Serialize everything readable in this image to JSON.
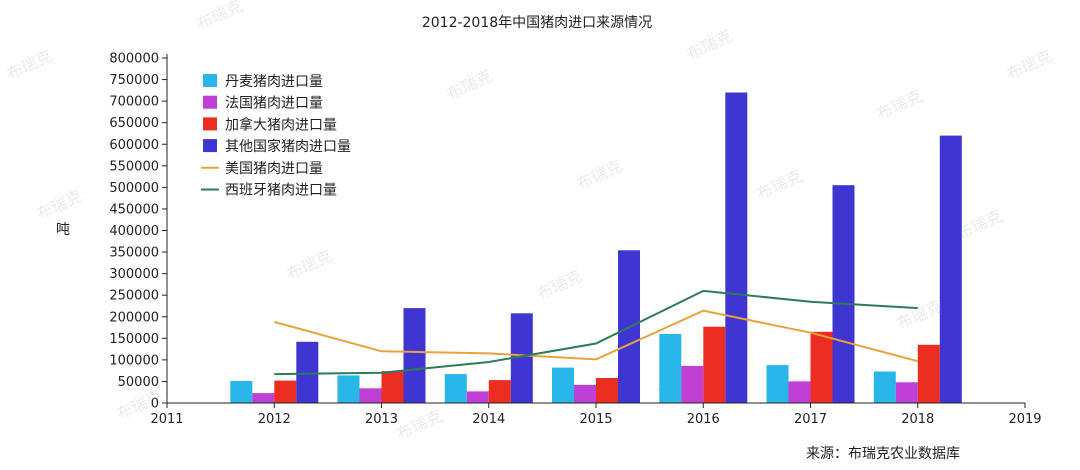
{
  "chart_data": {
    "type": "bar",
    "title": "2012-2018年中国猪肉进口来源情况",
    "ylabel": "吨",
    "xlabel": "",
    "source": "来源：布瑞克农业数据库",
    "watermark": "布瑞克",
    "xlim": [
      2011,
      2019
    ],
    "ylim": [
      0,
      800000
    ],
    "x_ticks": [
      "2011",
      "2012",
      "2013",
      "2014",
      "2015",
      "2016",
      "2017",
      "2018",
      "2019"
    ],
    "y_ticks": [
      "0",
      "50000",
      "100000",
      "150000",
      "200000",
      "250000",
      "300000",
      "350000",
      "400000",
      "450000",
      "500000",
      "550000",
      "600000",
      "650000",
      "700000",
      "750000",
      "800000"
    ],
    "categories": [
      2012,
      2013,
      2014,
      2015,
      2016,
      2017,
      2018
    ],
    "grid": false,
    "legend_position": "top-left",
    "series": [
      {
        "name": "丹麦猪肉进口量",
        "type": "bar",
        "color": "#29B6E8",
        "values": [
          51000,
          64000,
          67000,
          82000,
          160000,
          88000,
          73000
        ]
      },
      {
        "name": "法国猪肉进口量",
        "type": "bar",
        "color": "#C03FD6",
        "values": [
          23000,
          34000,
          27000,
          42000,
          86000,
          50000,
          48000
        ]
      },
      {
        "name": "加拿大猪肉进口量",
        "type": "bar",
        "color": "#EC2D22",
        "values": [
          52000,
          74000,
          53000,
          58000,
          177000,
          165000,
          135000
        ]
      },
      {
        "name": "其他国家猪肉进口量",
        "type": "bar",
        "color": "#3F36D2",
        "values": [
          142000,
          220000,
          208000,
          354000,
          720000,
          505000,
          620000
        ]
      },
      {
        "name": "美国猪肉进口量",
        "type": "line",
        "color": "#E9A23B",
        "values": [
          188000,
          120000,
          115000,
          101000,
          214000,
          163000,
          97000
        ]
      },
      {
        "name": "西班牙猪肉进口量",
        "type": "line",
        "color": "#2E7A5A",
        "values": [
          67000,
          70000,
          95000,
          138000,
          260000,
          235000,
          220000
        ]
      }
    ]
  }
}
